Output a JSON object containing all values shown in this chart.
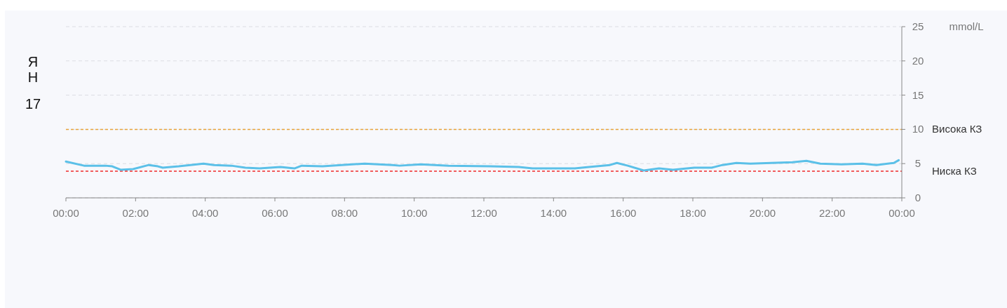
{
  "chart_data": {
    "type": "line",
    "title": "ЯН",
    "subtitle": "17",
    "ylabel": "mmol/L",
    "x": [
      0,
      0.52,
      1.13,
      1.33,
      1.57,
      1.93,
      2.38,
      2.64,
      2.78,
      3.24,
      3.95,
      4.25,
      4.75,
      5.15,
      5.56,
      6.16,
      6.56,
      6.77,
      7.37,
      8.58,
      9.38,
      9.58,
      10.19,
      10.99,
      12.19,
      13.0,
      13.4,
      14.61,
      15.02,
      15.62,
      15.82,
      16.13,
      16.59,
      17.03,
      17.43,
      18.04,
      18.54,
      18.85,
      19.25,
      19.65,
      20.25,
      20.86,
      21.26,
      21.66,
      22.27,
      22.87,
      23.27,
      23.77,
      23.91
    ],
    "series": [
      {
        "color": "#5bc0e8",
        "values": [
          5.3,
          4.7,
          4.7,
          4.6,
          4.1,
          4.2,
          4.8,
          4.6,
          4.4,
          4.6,
          5.0,
          4.8,
          4.7,
          4.4,
          4.3,
          4.5,
          4.3,
          4.7,
          4.6,
          5.0,
          4.8,
          4.7,
          4.9,
          4.7,
          4.6,
          4.5,
          4.3,
          4.3,
          4.5,
          4.8,
          5.1,
          4.7,
          4.0,
          4.3,
          4.1,
          4.4,
          4.4,
          4.8,
          5.1,
          5.0,
          5.1,
          5.2,
          5.4,
          5.0,
          4.9,
          5.0,
          4.8,
          5.1,
          5.5
        ]
      }
    ],
    "xlim": [
      0,
      24
    ],
    "xticks": [
      {
        "value": 0,
        "label": "00:00"
      },
      {
        "value": 2,
        "label": "02:00"
      },
      {
        "value": 4,
        "label": "04:00"
      },
      {
        "value": 6,
        "label": "06:00"
      },
      {
        "value": 8,
        "label": "08:00"
      },
      {
        "value": 10,
        "label": "10:00"
      },
      {
        "value": 12,
        "label": "12:00"
      },
      {
        "value": 14,
        "label": "14:00"
      },
      {
        "value": 16,
        "label": "16:00"
      },
      {
        "value": 18,
        "label": "18:00"
      },
      {
        "value": 20,
        "label": "20:00"
      },
      {
        "value": 22,
        "label": "22:00"
      },
      {
        "value": 24,
        "label": "00:00"
      }
    ],
    "ylim": [
      0,
      25
    ],
    "yticks": [
      0,
      5,
      10,
      15,
      20,
      25
    ],
    "grid": "y",
    "marker": "none",
    "line_style": "solid",
    "ref_lines": [
      {
        "axis": "y",
        "value": 10,
        "label": "Висока КЗ",
        "color": "#e8a33a",
        "line_style": "dashed"
      },
      {
        "axis": "y",
        "value": 3.9,
        "label": "Ниска КЗ",
        "color": "#f02a2a",
        "line_style": "dashed"
      }
    ]
  }
}
